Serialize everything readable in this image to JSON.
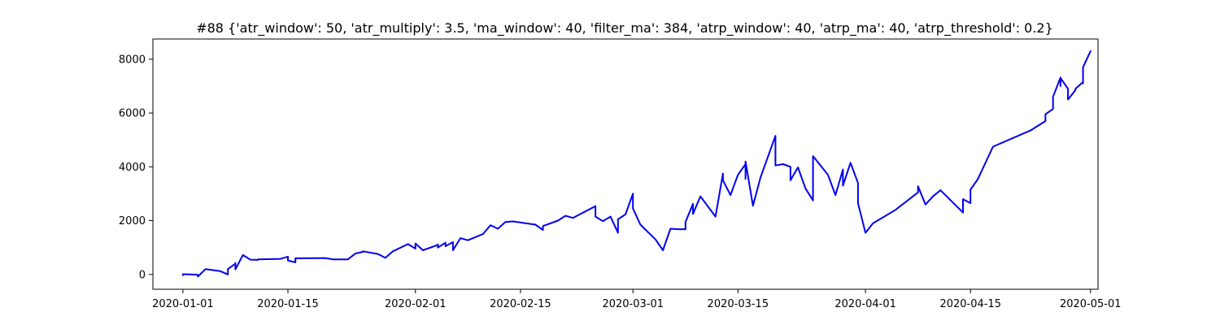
{
  "chart_data": {
    "type": "line",
    "title": "#88 {'atr_window': 50, 'atr_multiply': 3.5, 'ma_window': 40, 'filter_ma': 384, 'atrp_window': 40, 'atrp_ma': 40, 'atrp_threshold': 0.2}",
    "xlabel": "",
    "ylabel": "",
    "x_axis_type": "date",
    "xlim": [
      "2019-12-28",
      "2020-05-02"
    ],
    "ylim": [
      -550,
      8750
    ],
    "grid": false,
    "series_color": "#0000ee",
    "xticks": [
      {
        "date": "2020-01-01",
        "label": "2020-01-01"
      },
      {
        "date": "2020-01-15",
        "label": "2020-01-15"
      },
      {
        "date": "2020-02-01",
        "label": "2020-02-01"
      },
      {
        "date": "2020-02-15",
        "label": "2020-02-15"
      },
      {
        "date": "2020-03-01",
        "label": "2020-03-01"
      },
      {
        "date": "2020-03-15",
        "label": "2020-03-15"
      },
      {
        "date": "2020-04-01",
        "label": "2020-04-01"
      },
      {
        "date": "2020-04-15",
        "label": "2020-04-15"
      },
      {
        "date": "2020-05-01",
        "label": "2020-05-01"
      }
    ],
    "yticks": [
      {
        "value": 0,
        "label": "0"
      },
      {
        "value": 2000,
        "label": "2000"
      },
      {
        "value": 4000,
        "label": "4000"
      },
      {
        "value": 6000,
        "label": "6000"
      },
      {
        "value": 8000,
        "label": "8000"
      }
    ],
    "series": [
      {
        "points": [
          [
            "2020-01-01",
            -30
          ],
          [
            "2020-01-01",
            10
          ],
          [
            "2020-01-02",
            0
          ],
          [
            "2020-01-03",
            -10
          ],
          [
            "2020-01-03",
            -20
          ],
          [
            "2020-01-03",
            -80
          ],
          [
            "2020-01-04",
            200
          ],
          [
            "2020-01-06",
            120
          ],
          [
            "2020-01-07",
            0
          ],
          [
            "2020-01-07",
            200
          ],
          [
            "2020-01-08",
            400
          ],
          [
            "2020-01-08",
            430
          ],
          [
            "2020-01-08",
            190
          ],
          [
            "2020-01-09",
            720
          ],
          [
            "2020-01-10",
            550
          ],
          [
            "2020-01-11",
            540
          ],
          [
            "2020-01-11",
            560
          ],
          [
            "2020-01-14",
            580
          ],
          [
            "2020-01-15",
            660
          ],
          [
            "2020-01-15",
            520
          ],
          [
            "2020-01-16",
            450
          ],
          [
            "2020-01-16",
            600
          ],
          [
            "2020-01-20",
            610
          ],
          [
            "2020-01-21",
            560
          ],
          [
            "2020-01-23",
            560
          ],
          [
            "2020-01-24",
            780
          ],
          [
            "2020-01-25",
            840
          ],
          [
            "2020-01-25",
            860
          ],
          [
            "2020-01-27",
            760
          ],
          [
            "2020-01-28",
            620
          ],
          [
            "2020-01-29",
            860
          ],
          [
            "2020-01-31",
            1130
          ],
          [
            "2020-02-01",
            960
          ],
          [
            "2020-02-01",
            1150
          ],
          [
            "2020-02-02",
            900
          ],
          [
            "2020-02-04",
            1100
          ],
          [
            "2020-02-04",
            1120
          ],
          [
            "2020-02-04",
            1000
          ],
          [
            "2020-02-05",
            1180
          ],
          [
            "2020-02-05",
            1050
          ],
          [
            "2020-02-06",
            1200
          ],
          [
            "2020-02-06",
            900
          ],
          [
            "2020-02-07",
            1350
          ],
          [
            "2020-02-08",
            1270
          ],
          [
            "2020-02-10",
            1500
          ],
          [
            "2020-02-11",
            1830
          ],
          [
            "2020-02-12",
            1700
          ],
          [
            "2020-02-13",
            1950
          ],
          [
            "2020-02-14",
            1970
          ],
          [
            "2020-02-17",
            1850
          ],
          [
            "2020-02-18",
            1650
          ],
          [
            "2020-02-18",
            1800
          ],
          [
            "2020-02-20",
            2000
          ],
          [
            "2020-02-21",
            2180
          ],
          [
            "2020-02-22",
            2100
          ],
          [
            "2020-02-25",
            2540
          ],
          [
            "2020-02-25",
            2150
          ],
          [
            "2020-02-26",
            1980
          ],
          [
            "2020-02-27",
            2150
          ],
          [
            "2020-02-28",
            1550
          ],
          [
            "2020-02-28",
            2050
          ],
          [
            "2020-02-29",
            2230
          ],
          [
            "2020-03-01",
            3000
          ],
          [
            "2020-03-01",
            2450
          ],
          [
            "2020-03-02",
            1850
          ],
          [
            "2020-03-04",
            1300
          ],
          [
            "2020-03-05",
            900
          ],
          [
            "2020-03-06",
            1700
          ],
          [
            "2020-03-07",
            1680
          ],
          [
            "2020-03-08",
            1680
          ],
          [
            "2020-03-08",
            1950
          ],
          [
            "2020-03-09",
            2620
          ],
          [
            "2020-03-09",
            2250
          ],
          [
            "2020-03-10",
            2900
          ],
          [
            "2020-03-12",
            2150
          ],
          [
            "2020-03-13",
            3750
          ],
          [
            "2020-03-13",
            3500
          ],
          [
            "2020-03-14",
            2950
          ],
          [
            "2020-03-15",
            3700
          ],
          [
            "2020-03-16",
            4100
          ],
          [
            "2020-03-16",
            3550
          ],
          [
            "2020-03-16",
            4200
          ],
          [
            "2020-03-17",
            2550
          ],
          [
            "2020-03-18",
            3600
          ],
          [
            "2020-03-20",
            5150
          ],
          [
            "2020-03-20",
            4050
          ],
          [
            "2020-03-21",
            4100
          ],
          [
            "2020-03-22",
            4000
          ],
          [
            "2020-03-22",
            3500
          ],
          [
            "2020-03-23",
            3980
          ],
          [
            "2020-03-24",
            3200
          ],
          [
            "2020-03-25",
            2750
          ],
          [
            "2020-03-25",
            4400
          ],
          [
            "2020-03-27",
            3700
          ],
          [
            "2020-03-28",
            2950
          ],
          [
            "2020-03-29",
            3900
          ],
          [
            "2020-03-29",
            3300
          ],
          [
            "2020-03-30",
            4150
          ],
          [
            "2020-03-31",
            3400
          ],
          [
            "2020-03-31",
            2650
          ],
          [
            "2020-04-01",
            1550
          ],
          [
            "2020-04-02",
            1900
          ],
          [
            "2020-04-05",
            2400
          ],
          [
            "2020-04-08",
            3050
          ],
          [
            "2020-04-08",
            3280
          ],
          [
            "2020-04-09",
            2600
          ],
          [
            "2020-04-10",
            2900
          ],
          [
            "2020-04-11",
            3130
          ],
          [
            "2020-04-14",
            2300
          ],
          [
            "2020-04-14",
            2800
          ],
          [
            "2020-04-15",
            2650
          ],
          [
            "2020-04-15",
            3150
          ],
          [
            "2020-04-16",
            3550
          ],
          [
            "2020-04-18",
            4750
          ],
          [
            "2020-04-23",
            5350
          ],
          [
            "2020-04-25",
            5700
          ],
          [
            "2020-04-25",
            5950
          ],
          [
            "2020-04-26",
            6150
          ],
          [
            "2020-04-26",
            6600
          ],
          [
            "2020-04-27",
            7320
          ],
          [
            "2020-04-27",
            7200
          ],
          [
            "2020-04-27",
            7000
          ],
          [
            "2020-04-27",
            7300
          ],
          [
            "2020-04-28",
            6900
          ],
          [
            "2020-04-28",
            6500
          ],
          [
            "2020-04-29",
            6850
          ],
          [
            "2020-04-29",
            6900
          ],
          [
            "2020-04-30",
            7150
          ],
          [
            "2020-04-30",
            7100
          ],
          [
            "2020-04-30",
            7400
          ],
          [
            "2020-04-30",
            7700
          ],
          [
            "2020-05-01",
            8300
          ]
        ]
      }
    ]
  }
}
